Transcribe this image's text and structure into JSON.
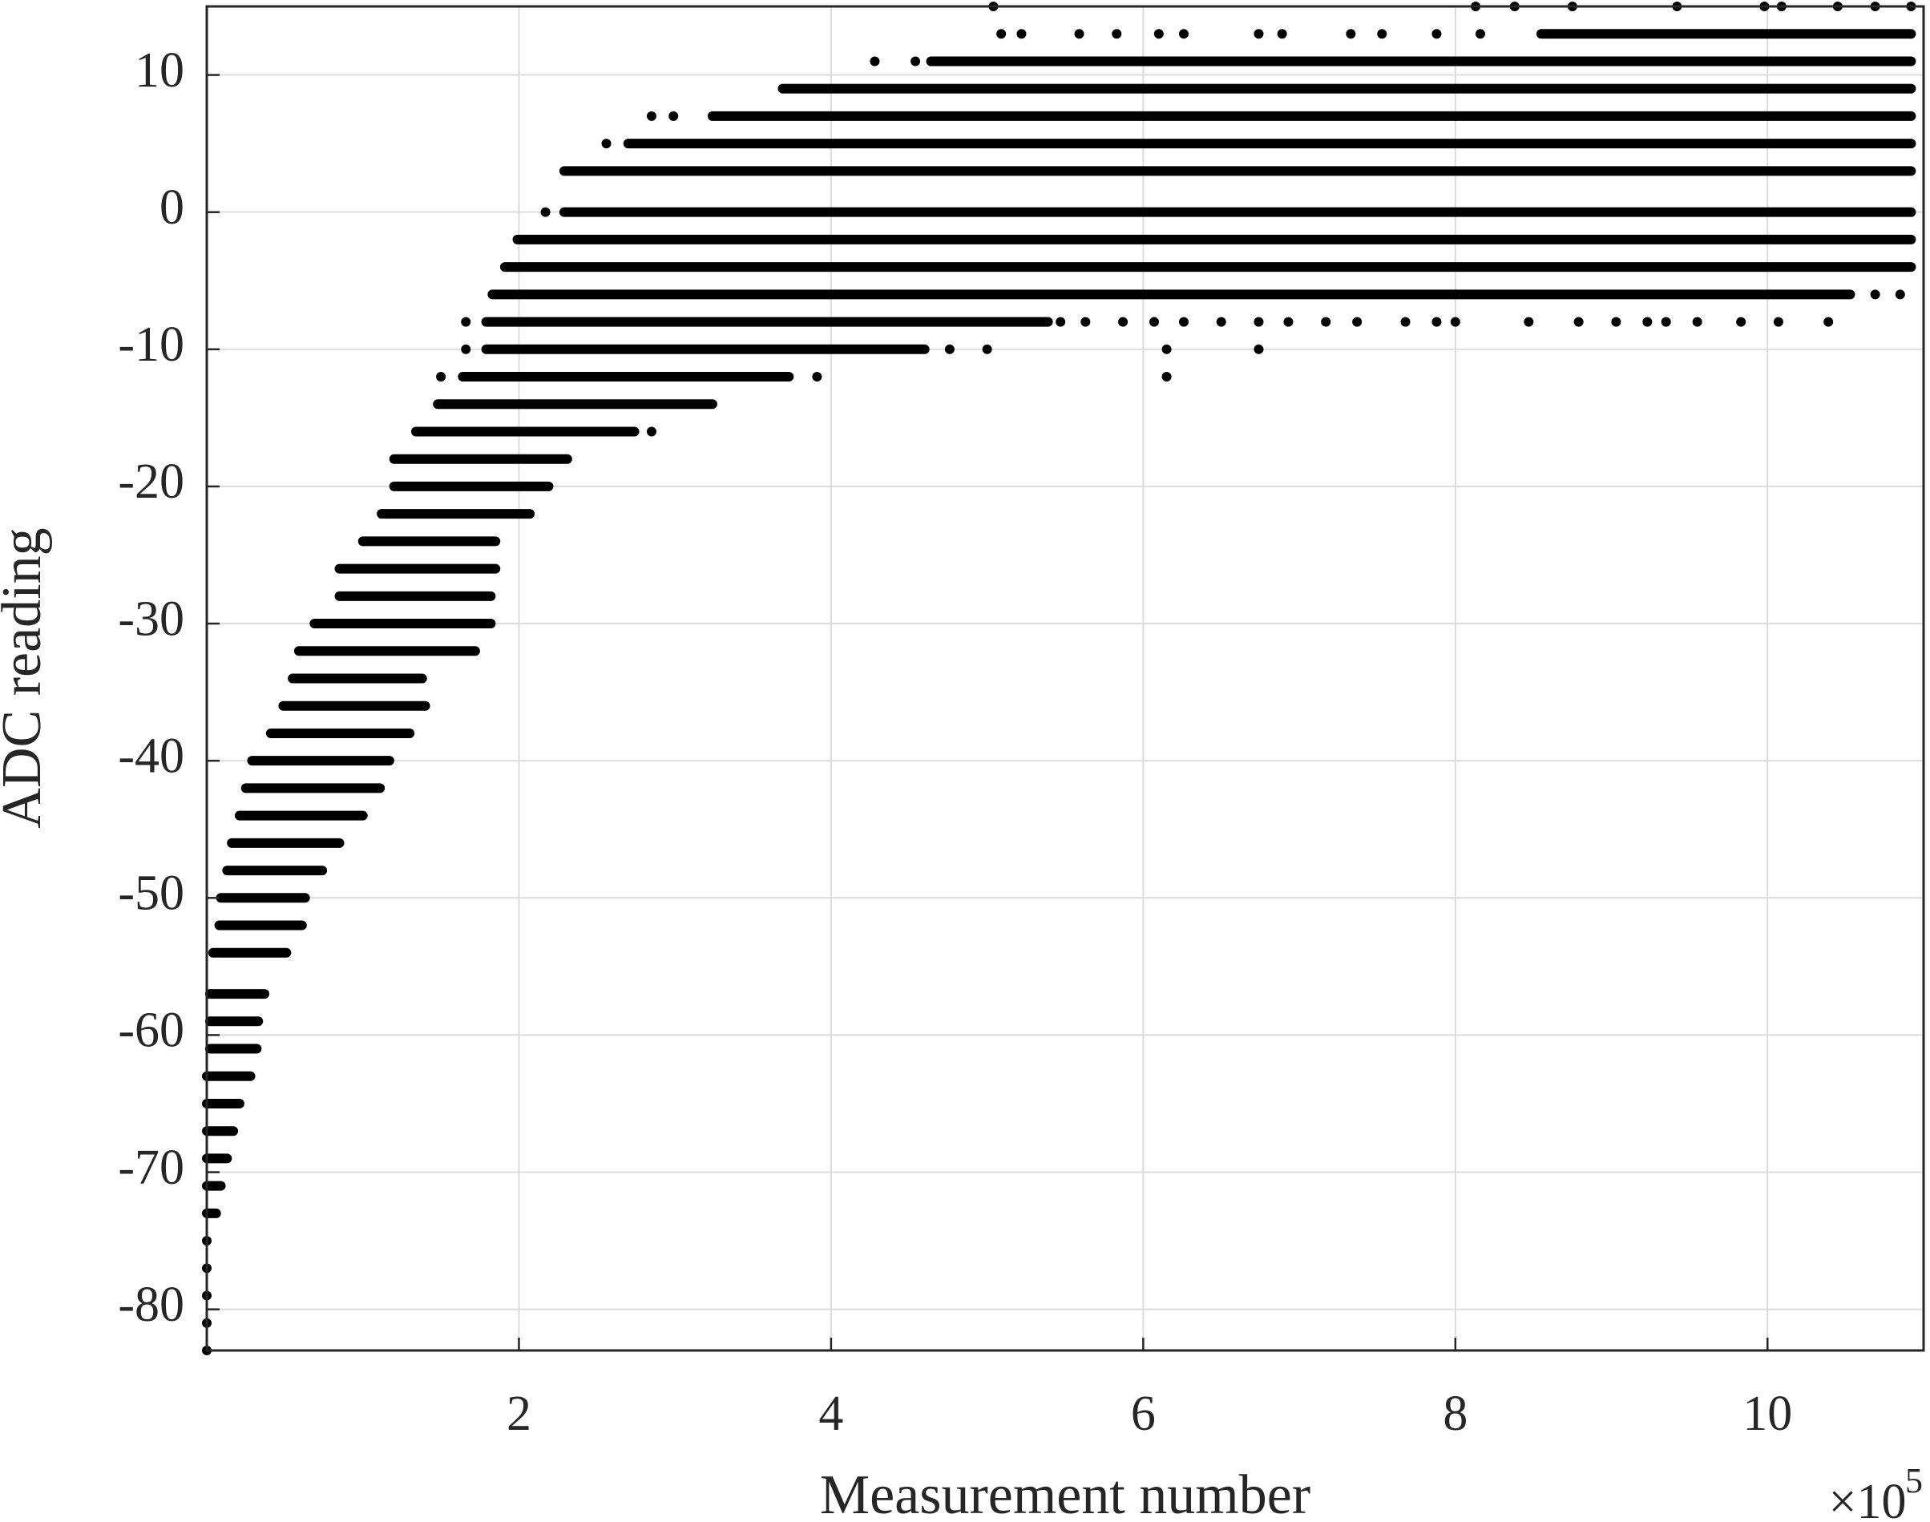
{
  "chart_data": {
    "type": "scatter",
    "x_label": "Measurement number",
    "y_label": "ADC reading",
    "x_multiplier": "×10",
    "x_exponent": "5",
    "color": "#000000",
    "grid": true,
    "xlim": [
      0,
      1100000
    ],
    "ylim": [
      -83,
      15
    ],
    "xticks": [
      {
        "value": 200000,
        "label": "2"
      },
      {
        "value": 400000,
        "label": "4"
      },
      {
        "value": 600000,
        "label": "6"
      },
      {
        "value": 800000,
        "label": "8"
      },
      {
        "value": 1000000,
        "label": "10"
      }
    ],
    "yticks": [
      -80,
      -70,
      -60,
      -50,
      -40,
      -30,
      -20,
      -10,
      0,
      10
    ],
    "bands": {
      "y": [
        13,
        11,
        9,
        7,
        5,
        3,
        0,
        -2,
        -4,
        -6,
        -8,
        -10,
        -12,
        -14,
        -16,
        -18,
        -20,
        -22,
        -24,
        -26,
        -28,
        -30,
        -32,
        -34,
        -36,
        -38,
        -40,
        -42,
        -44,
        -46,
        -48,
        -50,
        -52,
        -54,
        -57,
        -59,
        -61,
        -63,
        -65,
        -67,
        -69,
        -71,
        -73
      ],
      "x_start": [
        855000,
        464000,
        369000,
        324000,
        270000,
        229000,
        229000,
        199000,
        191000,
        183000,
        179000,
        179000,
        164000,
        148000,
        134000,
        120000,
        120000,
        112000,
        100000,
        85000,
        85000,
        69000,
        59000,
        55000,
        49000,
        41000,
        29000,
        25000,
        21000,
        16000,
        13000,
        9000,
        8000,
        4000,
        2000,
        2000,
        2000,
        0,
        0,
        0,
        0,
        0,
        0
      ],
      "x_end": [
        1092000,
        1092000,
        1092000,
        1092000,
        1092000,
        1092000,
        1092000,
        1092000,
        1092000,
        1053000,
        539000,
        460000,
        373000,
        324000,
        274000,
        231000,
        219000,
        207000,
        185000,
        185000,
        182000,
        182000,
        172000,
        138000,
        140000,
        130000,
        117000,
        111000,
        100000,
        85000,
        74000,
        63000,
        61000,
        51000,
        37000,
        33000,
        32000,
        28000,
        21000,
        17000,
        13000,
        9000,
        6000
      ]
    },
    "points": {
      "x": [
        504000,
        875000,
        942000,
        998000,
        1009000,
        1045000,
        1069000,
        1092000,
        813000,
        838000,
        509000,
        522000,
        559000,
        583000,
        610000,
        626000,
        674000,
        689000,
        733000,
        753000,
        788000,
        816000,
        428000,
        454000,
        285000,
        299000,
        256000,
        217000,
        166000,
        547000,
        563000,
        587000,
        607000,
        626000,
        650000,
        674000,
        693000,
        717000,
        737000,
        768000,
        788000,
        800000,
        847000,
        879000,
        903000,
        923000,
        935000,
        955000,
        983000,
        1007000,
        1039000,
        1069000,
        1085000,
        166000,
        476000,
        500000,
        615000,
        674000,
        150000,
        391000,
        615000,
        285000,
        0,
        0,
        0,
        0,
        0
      ],
      "y": [
        15,
        15,
        15,
        15,
        15,
        15,
        15,
        15,
        15,
        15,
        13,
        13,
        13,
        13,
        13,
        13,
        13,
        13,
        13,
        13,
        13,
        13,
        11,
        11,
        7,
        7,
        5,
        0,
        -8,
        -8,
        -8,
        -8,
        -8,
        -8,
        -8,
        -8,
        -8,
        -8,
        -8,
        -8,
        -8,
        -8,
        -8,
        -8,
        -8,
        -8,
        -8,
        -8,
        -8,
        -8,
        -8,
        -6,
        -6,
        -10,
        -10,
        -10,
        -10,
        -10,
        -12,
        -12,
        -12,
        -16,
        -75,
        -77,
        -79,
        -81,
        -83
      ]
    }
  }
}
